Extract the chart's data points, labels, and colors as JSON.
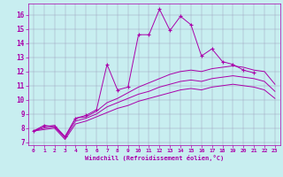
{
  "xlabel": "Windchill (Refroidissement éolien,°C)",
  "bg_color": "#c8eef0",
  "line_color": "#aa00aa",
  "grid_color": "#9999bb",
  "x_ticks": [
    0,
    1,
    2,
    3,
    4,
    5,
    6,
    7,
    8,
    9,
    10,
    11,
    12,
    13,
    14,
    15,
    16,
    17,
    18,
    19,
    20,
    21,
    22,
    23
  ],
  "y_ticks": [
    7,
    8,
    9,
    10,
    11,
    12,
    13,
    14,
    15,
    16
  ],
  "xlim": [
    -0.5,
    23.5
  ],
  "ylim": [
    6.8,
    16.8
  ],
  "series": [
    {
      "x": [
        0,
        1,
        2,
        3,
        4,
        5,
        6,
        7,
        8,
        9,
        10,
        11,
        12,
        13,
        14,
        15,
        16,
        17,
        18,
        19,
        20,
        21,
        22,
        23
      ],
      "y": [
        7.8,
        8.2,
        8.1,
        7.4,
        8.7,
        8.9,
        9.3,
        12.5,
        10.7,
        10.9,
        14.6,
        14.6,
        16.4,
        14.9,
        15.9,
        15.3,
        13.1,
        13.6,
        12.7,
        12.5,
        12.1,
        11.9,
        null,
        null
      ],
      "has_marker": true
    },
    {
      "x": [
        0,
        1,
        2,
        3,
        4,
        5,
        6,
        7,
        8,
        9,
        10,
        11,
        12,
        13,
        14,
        15,
        16,
        17,
        18,
        19,
        20,
        21,
        22,
        23
      ],
      "y": [
        7.8,
        8.1,
        8.2,
        7.4,
        8.7,
        8.8,
        9.2,
        9.8,
        10.1,
        10.5,
        10.9,
        11.2,
        11.5,
        11.8,
        12.0,
        12.1,
        12.0,
        12.2,
        12.3,
        12.4,
        12.3,
        12.1,
        12.0,
        11.1
      ],
      "has_marker": false
    },
    {
      "x": [
        0,
        1,
        2,
        3,
        4,
        5,
        6,
        7,
        8,
        9,
        10,
        11,
        12,
        13,
        14,
        15,
        16,
        17,
        18,
        19,
        20,
        21,
        22,
        23
      ],
      "y": [
        7.8,
        8.0,
        8.1,
        7.3,
        8.5,
        8.7,
        9.0,
        9.5,
        9.8,
        10.1,
        10.4,
        10.6,
        10.9,
        11.1,
        11.3,
        11.4,
        11.3,
        11.5,
        11.6,
        11.7,
        11.6,
        11.5,
        11.3,
        10.6
      ],
      "has_marker": false
    },
    {
      "x": [
        0,
        1,
        2,
        3,
        4,
        5,
        6,
        7,
        8,
        9,
        10,
        11,
        12,
        13,
        14,
        15,
        16,
        17,
        18,
        19,
        20,
        21,
        22,
        23
      ],
      "y": [
        7.8,
        7.9,
        8.0,
        7.2,
        8.3,
        8.5,
        8.8,
        9.1,
        9.4,
        9.6,
        9.9,
        10.1,
        10.3,
        10.5,
        10.7,
        10.8,
        10.7,
        10.9,
        11.0,
        11.1,
        11.0,
        10.9,
        10.7,
        10.1
      ],
      "has_marker": false
    }
  ]
}
